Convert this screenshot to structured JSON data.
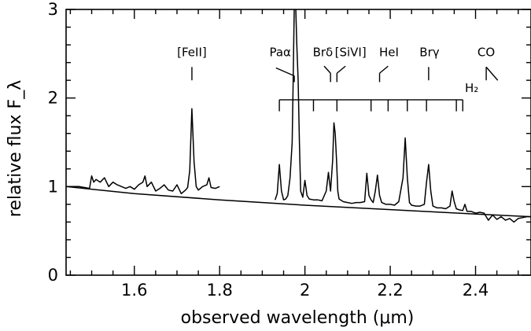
{
  "chart_data": {
    "type": "line",
    "title": "",
    "xlabel": "observed wavelength (μm)",
    "ylabel": "relative flux F_λ",
    "xlim": [
      1.44,
      2.53
    ],
    "ylim": [
      0,
      3
    ],
    "grid": false,
    "x_ticks": [
      {
        "value": 1.6,
        "label": "1.6"
      },
      {
        "value": 1.8,
        "label": "1.8"
      },
      {
        "value": 2.0,
        "label": "2"
      },
      {
        "value": 2.2,
        "label": "2.2"
      },
      {
        "value": 2.4,
        "label": "2.4"
      }
    ],
    "y_ticks": [
      {
        "value": 0,
        "label": "0"
      },
      {
        "value": 1,
        "label": "1"
      },
      {
        "value": 2,
        "label": "2"
      },
      {
        "value": 3,
        "label": "3"
      }
    ],
    "series": [
      {
        "role": "spectrum",
        "segments": [
          {
            "x": [
              1.44,
              1.47,
              1.495,
              1.5,
              1.505,
              1.51,
              1.52,
              1.53,
              1.54,
              1.55,
              1.56,
              1.57,
              1.58,
              1.59,
              1.6,
              1.61,
              1.62,
              1.625,
              1.63,
              1.64,
              1.65,
              1.66,
              1.67,
              1.68,
              1.69,
              1.7,
              1.71,
              1.72,
              1.725,
              1.73,
              1.735,
              1.74,
              1.745,
              1.75,
              1.76,
              1.77,
              1.775,
              1.78,
              1.79,
              1.8
            ],
            "y": [
              1.0,
              1.0,
              0.98,
              1.12,
              1.05,
              1.08,
              1.05,
              1.1,
              1.0,
              1.05,
              1.02,
              1.0,
              0.98,
              1.0,
              0.97,
              1.02,
              1.05,
              1.12,
              1.0,
              1.05,
              0.95,
              0.98,
              1.02,
              0.96,
              0.95,
              1.02,
              0.92,
              0.96,
              0.99,
              1.18,
              1.88,
              1.28,
              1.0,
              0.96,
              1.0,
              1.02,
              1.1,
              0.99,
              0.98,
              1.0
            ]
          },
          {
            "x": [
              1.93,
              1.935,
              1.94,
              1.945,
              1.95,
              1.955,
              1.96,
              1.965,
              1.97,
              1.972,
              1.975,
              1.978,
              1.981,
              1.984,
              1.987,
              1.99,
              1.995,
              2.0,
              2.005,
              2.01,
              2.02,
              2.03,
              2.04,
              2.05,
              2.055,
              2.06,
              2.065,
              2.068,
              2.071,
              2.074,
              2.077,
              2.08,
              2.09,
              2.1,
              2.11,
              2.12,
              2.13,
              2.14,
              2.145,
              2.15,
              2.155,
              2.16,
              2.165,
              2.17,
              2.175,
              2.18,
              2.19,
              2.2,
              2.21,
              2.22,
              2.23,
              2.235,
              2.24,
              2.245,
              2.25,
              2.26,
              2.27,
              2.28,
              2.285,
              2.29,
              2.295,
              2.3,
              2.31,
              2.32,
              2.33,
              2.34,
              2.345,
              2.35,
              2.355,
              2.36,
              2.37,
              2.375,
              2.38,
              2.39,
              2.4,
              2.41,
              2.42,
              2.425,
              2.43,
              2.44,
              2.45,
              2.46,
              2.47,
              2.48,
              2.49,
              2.5,
              2.51,
              2.52,
              2.53
            ],
            "y": [
              0.85,
              0.92,
              1.25,
              0.95,
              0.85,
              0.86,
              0.9,
              1.1,
              1.5,
              2.1,
              3.05,
              3.1,
              2.6,
              2.2,
              1.5,
              0.95,
              0.88,
              1.07,
              0.9,
              0.86,
              0.85,
              0.85,
              0.84,
              0.95,
              1.16,
              0.95,
              1.3,
              1.72,
              1.6,
              1.3,
              0.95,
              0.86,
              0.83,
              0.82,
              0.81,
              0.82,
              0.82,
              0.83,
              1.15,
              0.9,
              0.85,
              0.82,
              0.95,
              1.13,
              0.9,
              0.82,
              0.8,
              0.8,
              0.79,
              0.83,
              1.1,
              1.55,
              1.1,
              0.82,
              0.79,
              0.78,
              0.78,
              0.8,
              1.05,
              1.25,
              0.95,
              0.78,
              0.76,
              0.76,
              0.75,
              0.78,
              0.95,
              0.83,
              0.75,
              0.74,
              0.73,
              0.8,
              0.72,
              0.72,
              0.7,
              0.71,
              0.7,
              0.66,
              0.62,
              0.68,
              0.63,
              0.66,
              0.62,
              0.64,
              0.6,
              0.64,
              0.65,
              0.66,
              0.66
            ]
          }
        ]
      },
      {
        "role": "continuum",
        "x": [
          1.44,
          1.6,
          1.8,
          2.0,
          2.2,
          2.4,
          2.53
        ],
        "y": [
          1.0,
          0.92,
          0.85,
          0.79,
          0.74,
          0.69,
          0.66
        ]
      }
    ],
    "annotations": [
      {
        "label": "[FeII]",
        "label_x": 1.735,
        "label_y": 2.47,
        "ticks": [
          [
            1.735,
            2.35,
            1.735,
            2.2
          ]
        ]
      },
      {
        "label": "Paα",
        "label_x": 1.942,
        "label_y": 2.47,
        "ticks": [
          [
            1.932,
            2.34,
            1.975,
            2.25
          ],
          [
            1.975,
            2.25,
            1.975,
            2.18
          ]
        ]
      },
      {
        "label": "Brδ",
        "label_x": 2.042,
        "label_y": 2.47,
        "ticks": [
          [
            2.045,
            2.36,
            2.06,
            2.28
          ],
          [
            2.06,
            2.28,
            2.06,
            2.18
          ]
        ]
      },
      {
        "label": "[SiVI]",
        "label_x": 2.107,
        "label_y": 2.47,
        "ticks": [
          [
            2.095,
            2.36,
            2.075,
            2.28
          ],
          [
            2.075,
            2.28,
            2.075,
            2.18
          ]
        ]
      },
      {
        "label": "HeI",
        "label_x": 2.197,
        "label_y": 2.47,
        "ticks": [
          [
            2.195,
            2.36,
            2.175,
            2.28
          ],
          [
            2.175,
            2.28,
            2.175,
            2.18
          ]
        ]
      },
      {
        "label": "Brγ",
        "label_x": 2.292,
        "label_y": 2.47,
        "ticks": [
          [
            2.29,
            2.35,
            2.29,
            2.2
          ]
        ]
      },
      {
        "label": "CO",
        "label_x": 2.425,
        "label_y": 2.47,
        "ticks": [
          [
            2.425,
            2.2,
            2.425,
            2.35
          ],
          [
            2.425,
            2.35,
            2.452,
            2.2
          ]
        ]
      }
    ],
    "h2_ladder": {
      "label": "H₂",
      "label_x": 2.375,
      "label_y": 2.07,
      "bar_y": 1.98,
      "bar_x": [
        1.94,
        2.37
      ],
      "tick_bottom_y": 1.85,
      "tick_x": [
        1.94,
        2.02,
        2.075,
        2.155,
        2.195,
        2.24,
        2.285,
        2.355,
        2.37
      ]
    }
  }
}
